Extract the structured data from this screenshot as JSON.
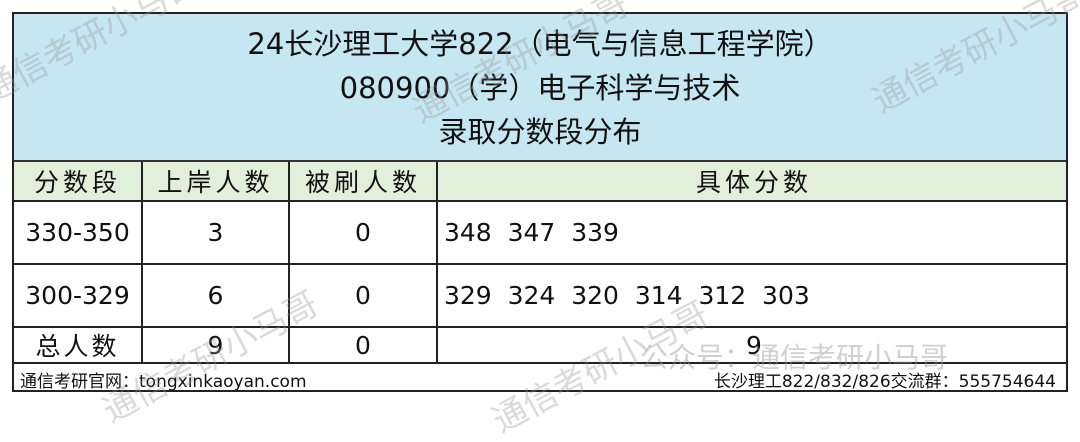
{
  "title": {
    "line1": "24长沙理工大学822（电气与信息工程学院）",
    "line2": "080900（学）电子科学与技术",
    "line3": "录取分数段分布"
  },
  "headers": [
    "分数段",
    "上岸人数",
    "被刷人数",
    "具体分数"
  ],
  "rows": [
    {
      "range": "330-350",
      "admitted": "3",
      "rejected": "0",
      "scores": "348  347  339"
    },
    {
      "range": "300-329",
      "admitted": "6",
      "rejected": "0",
      "scores": "329  324  320  314  312  303"
    }
  ],
  "total": {
    "label": "总人数",
    "admitted": "9",
    "rejected": "0",
    "scores": "9"
  },
  "footer": {
    "left": "通信考研官网：tongxinkaoyan.com",
    "right": "长沙理工822/832/826交流群：555754644"
  },
  "watermark": {
    "text": "通信考研小马哥",
    "account": "公众号：通信考研小马哥"
  },
  "colors": {
    "title_bg": "#c6e6f2",
    "header_bg": "#e2efda"
  }
}
